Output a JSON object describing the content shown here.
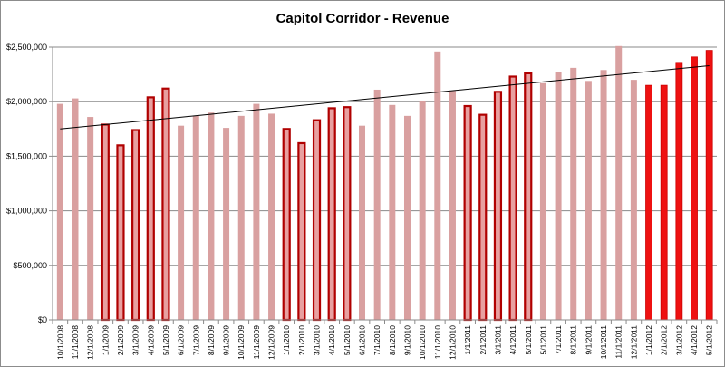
{
  "chart_data": {
    "type": "bar",
    "title": "Capitol Corridor - Revenue",
    "xlabel": "",
    "ylabel": "",
    "ylim": [
      0,
      2500000
    ],
    "yticks": [
      0,
      500000,
      1000000,
      1500000,
      2000000,
      2500000
    ],
    "ytick_labels": [
      "$0",
      "$500,000",
      "$1,000,000",
      "$1,500,000",
      "$2,000,000",
      "$2,500,000"
    ],
    "grid": true,
    "legend": "none",
    "colors": {
      "base": "#d9a0a0",
      "highlight_fill": "#e8a0a0",
      "highlight_edge": "#b00000",
      "current": "#ee1111",
      "trendline": "#000000"
    },
    "categories": [
      "10/1/2008",
      "11/1/2008",
      "12/1/2008",
      "1/1/2009",
      "2/1/2009",
      "3/1/2009",
      "4/1/2009",
      "5/1/2009",
      "6/1/2009",
      "7/1/2009",
      "8/1/2009",
      "9/1/2009",
      "10/1/2009",
      "11/1/2009",
      "12/1/2009",
      "1/1/2010",
      "2/1/2010",
      "3/1/2010",
      "4/1/2010",
      "5/1/2010",
      "6/1/2010",
      "7/1/2010",
      "8/1/2010",
      "9/1/2010",
      "10/1/2010",
      "11/1/2010",
      "12/1/2010",
      "1/1/2011",
      "2/1/2011",
      "3/1/2011",
      "4/1/2011",
      "5/1/2011",
      "5/1/2011",
      "7/1/2011",
      "8/1/2011",
      "9/1/2011",
      "10/1/2011",
      "11/1/2011",
      "12/1/2011",
      "1/1/2012",
      "2/1/2012",
      "3/1/2012",
      "4/1/2012",
      "5/1/2012"
    ],
    "values": [
      1980000,
      2030000,
      1860000,
      1790000,
      1600000,
      1740000,
      2040000,
      2120000,
      1780000,
      1870000,
      1900000,
      1760000,
      1870000,
      1980000,
      1890000,
      1750000,
      1620000,
      1830000,
      1940000,
      1950000,
      1780000,
      2110000,
      1970000,
      1870000,
      2010000,
      2460000,
      2100000,
      1960000,
      1880000,
      2090000,
      2230000,
      2260000,
      2170000,
      2270000,
      2310000,
      2190000,
      2290000,
      2510000,
      2200000,
      2150000,
      2150000,
      2360000,
      2410000,
      2470000
    ],
    "bar_styles": [
      "base",
      "base",
      "base",
      "highlight",
      "highlight",
      "highlight",
      "highlight",
      "highlight",
      "base",
      "base",
      "base",
      "base",
      "base",
      "base",
      "base",
      "highlight",
      "highlight",
      "highlight",
      "highlight",
      "highlight",
      "base",
      "base",
      "base",
      "base",
      "base",
      "base",
      "base",
      "highlight",
      "highlight",
      "highlight",
      "highlight",
      "highlight",
      "base",
      "base",
      "base",
      "base",
      "base",
      "base",
      "base",
      "current",
      "current",
      "current",
      "current",
      "current"
    ],
    "trendline": {
      "type": "linear",
      "start_value": 1750000,
      "end_value": 2330000
    }
  }
}
